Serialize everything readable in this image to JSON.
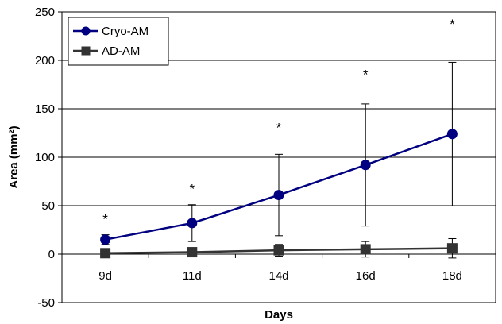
{
  "chart_data": {
    "type": "line",
    "categories": [
      "9d",
      "11d",
      "14d",
      "16d",
      "18d"
    ],
    "xlabel": "Days",
    "ylabel": "Area (mm²)",
    "ylim": [
      -50,
      250
    ],
    "yticks": [
      -50,
      0,
      50,
      100,
      150,
      200,
      250
    ],
    "ytick_labels": [
      "-50",
      "0",
      "50",
      "100",
      "150",
      "200",
      "250"
    ],
    "grid": "horizontal",
    "legend_position": "top-left",
    "series": [
      {
        "name": "Cryo-AM",
        "color": "#000080",
        "marker": "circle",
        "values": [
          15,
          32,
          61,
          92,
          124
        ],
        "error": [
          5,
          19,
          42,
          63,
          74
        ]
      },
      {
        "name": "AD-AM",
        "color": "#333333",
        "marker": "square",
        "values": [
          1,
          2,
          4,
          5,
          6
        ],
        "error": [
          2,
          3,
          6,
          8,
          10
        ]
      }
    ],
    "annotations": [
      {
        "category": "9d",
        "text": "*",
        "y": 39
      },
      {
        "category": "11d",
        "text": "*",
        "y": 70
      },
      {
        "category": "14d",
        "text": "*",
        "y": 133
      },
      {
        "category": "16d",
        "text": "*",
        "y": 188
      },
      {
        "category": "18d",
        "text": "*",
        "y": 240
      }
    ]
  }
}
